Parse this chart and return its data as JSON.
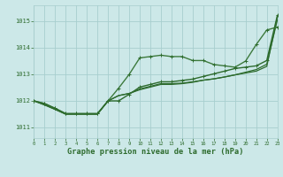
{
  "background_color": "#cce8e8",
  "grid_color": "#a8cece",
  "line_color_dark": "#2d6b2d",
  "line_color_mid": "#3d7a3d",
  "xlabel": "Graphe pression niveau de la mer (hPa)",
  "ylim": [
    1010.6,
    1015.6
  ],
  "xlim": [
    0,
    23
  ],
  "yticks": [
    1011,
    1012,
    1013,
    1014,
    1015
  ],
  "xticks": [
    0,
    1,
    2,
    3,
    4,
    5,
    6,
    7,
    8,
    9,
    10,
    11,
    12,
    13,
    14,
    15,
    16,
    17,
    18,
    19,
    20,
    21,
    22,
    23
  ],
  "series": {
    "line1": [
      1012.0,
      1011.85,
      1011.68,
      1011.5,
      1011.5,
      1011.5,
      1011.5,
      1012.0,
      1012.2,
      1012.28,
      1012.42,
      1012.52,
      1012.62,
      1012.62,
      1012.65,
      1012.7,
      1012.78,
      1012.83,
      1012.9,
      1012.98,
      1013.08,
      1013.18,
      1013.38,
      1015.05
    ],
    "line2": [
      1012.0,
      1011.85,
      1011.68,
      1011.5,
      1011.5,
      1011.5,
      1011.5,
      1012.0,
      1012.2,
      1012.28,
      1012.45,
      1012.55,
      1012.65,
      1012.65,
      1012.67,
      1012.72,
      1012.78,
      1012.83,
      1012.9,
      1012.98,
      1013.05,
      1013.12,
      1013.3,
      1015.15
    ],
    "line3": [
      1012.0,
      1011.9,
      1011.72,
      1011.52,
      1011.52,
      1011.52,
      1011.52,
      1012.0,
      1012.48,
      1013.0,
      1013.62,
      1013.67,
      1013.72,
      1013.67,
      1013.67,
      1013.52,
      1013.52,
      1013.37,
      1013.32,
      1013.27,
      1013.5,
      1014.12,
      1014.67,
      1014.78
    ],
    "line4": [
      1012.0,
      1011.9,
      1011.72,
      1011.52,
      1011.52,
      1011.52,
      1011.52,
      1012.0,
      1012.0,
      1012.25,
      1012.52,
      1012.62,
      1012.72,
      1012.72,
      1012.77,
      1012.82,
      1012.92,
      1013.02,
      1013.12,
      1013.22,
      1013.27,
      1013.32,
      1013.52,
      1015.22
    ]
  }
}
